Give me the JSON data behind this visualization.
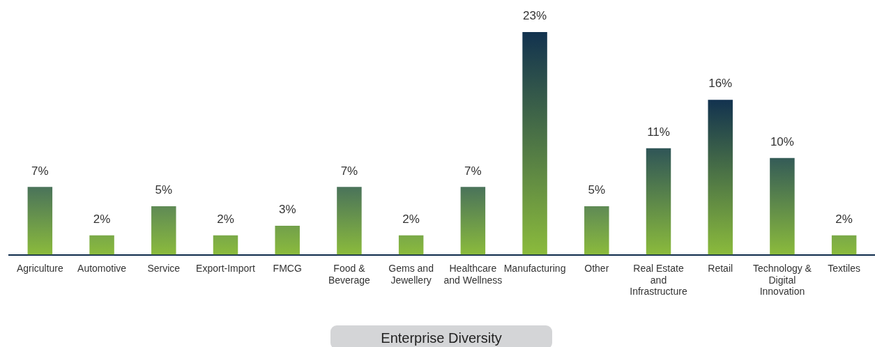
{
  "chart_data": {
    "type": "bar",
    "xlabel": "Enterprise Diversity",
    "categories": [
      "Agriculture",
      "Automotive",
      "Service",
      "Export-Import",
      "FMCG",
      "Food &\nBeverage",
      "Gems and\nJewellery",
      "Healthcare\nand Wellness",
      "Manufacturing",
      "Other",
      "Real Estate\nand\nInfrastructure",
      "Retail",
      "Technology &\nDigital\nInnovation",
      "Textiles"
    ],
    "series": [
      {
        "color": "#8bbb3c",
        "values": [
          7,
          2,
          5,
          2,
          3,
          7,
          2,
          7,
          23,
          5,
          11,
          16,
          10,
          2
        ],
        "colors": [
          "#4a735a",
          "#7aa948",
          "#5f8a55",
          "#7aa948",
          "#72a04b",
          "#4a735a",
          "#7aa948",
          "#4a735a",
          "#12324f",
          "#5f8a55",
          "#2f5557",
          "#12324f",
          "#345b57",
          "#7aa948"
        ],
        "value_labels": [
          "7%",
          "2%",
          "5%",
          "2%",
          "3%",
          "7%",
          "2%",
          "7%",
          "23%",
          "5%",
          "11%",
          "16%",
          "10%",
          "2%"
        ]
      }
    ],
    "grid": false,
    "legend": false
  }
}
